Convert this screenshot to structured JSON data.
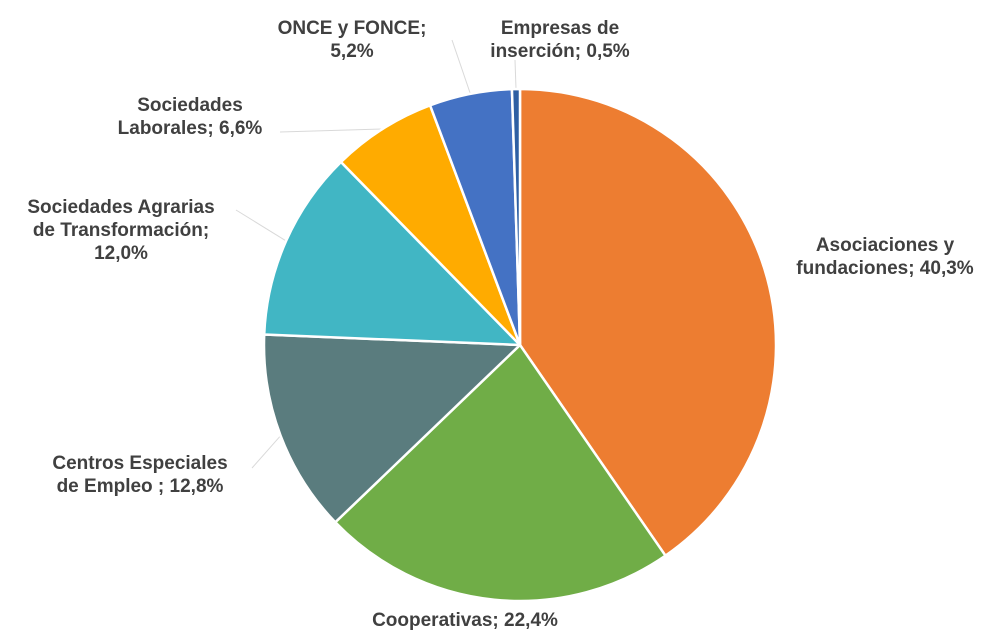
{
  "chart_data": {
    "type": "pie",
    "title": "",
    "start_angle_deg": 0,
    "direction": "clockwise",
    "slices": [
      {
        "name": "Asociaciones y fundaciones",
        "value": 40.3,
        "color": "#ED7D31",
        "label_lines": [
          "Asociaciones y",
          "fundaciones; 40,3%"
        ]
      },
      {
        "name": "Cooperativas",
        "value": 22.4,
        "color": "#70AD47",
        "label_lines": [
          "Cooperativas; 22,4%"
        ]
      },
      {
        "name": "Centros Especiales de Empleo",
        "value": 12.8,
        "color": "#5A7C7E",
        "label_lines": [
          "Centros Especiales",
          "de Empleo ; 12,8%"
        ]
      },
      {
        "name": "Sociedades Agrarias de Transformación",
        "value": 12.0,
        "color": "#41B6C4",
        "label_lines": [
          "Sociedades Agrarias",
          "de Transformación;",
          "12,0%"
        ]
      },
      {
        "name": "Sociedades Laborales",
        "value": 6.6,
        "color": "#FFAB00",
        "label_lines": [
          "Sociedades",
          "Laborales; 6,6%"
        ]
      },
      {
        "name": "ONCE y FONCE",
        "value": 5.2,
        "color": "#4472C4",
        "label_lines": [
          "ONCE y FONCE;",
          "5,2%"
        ]
      },
      {
        "name": "Empresas de inserción",
        "value": 0.5,
        "color": "#2E5FA3",
        "label_lines": [
          "Empresas de",
          "inserción; 0,5%"
        ]
      }
    ]
  }
}
